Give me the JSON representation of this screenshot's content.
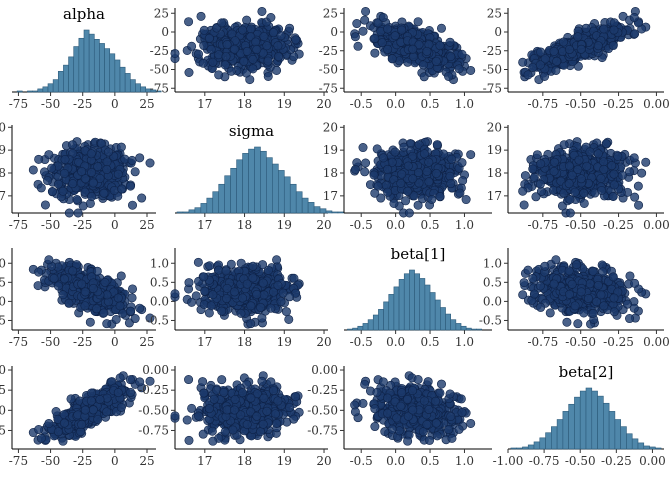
{
  "chart_data": {
    "type": "pairs",
    "title": "",
    "parameters": [
      {
        "name": "alpha",
        "ticks": [
          -75,
          -50,
          -25,
          0,
          25
        ],
        "tick_labels": [
          "-75",
          "-50",
          "-25",
          "0",
          "25"
        ],
        "range": [
          -80,
          32
        ]
      },
      {
        "name": "sigma",
        "ticks": [
          17,
          18,
          19,
          20
        ],
        "tick_labels": [
          "17",
          "18",
          "19",
          "20"
        ],
        "range": [
          16.25,
          20.1
        ]
      },
      {
        "name": "beta[1]",
        "ticks": [
          -0.5,
          0,
          0.5,
          1.0
        ],
        "tick_labels": [
          "-0.5",
          "0.0",
          "0.5",
          "1.0"
        ],
        "range": [
          -0.75,
          1.4
        ]
      },
      {
        "name": "beta[2]",
        "ticks": [
          -0.75,
          -0.5,
          -0.25,
          0
        ],
        "tick_labels": [
          "-0.75",
          "-0.50",
          "-0.25",
          "0.00"
        ],
        "range": [
          -0.98,
          0.05
        ]
      }
    ],
    "diagonal_tick_overrides": {
      "beta[2]": {
        "ticks": [
          -1,
          -0.75,
          -0.5,
          -0.25,
          0
        ],
        "tick_labels": [
          "-1.00",
          "-0.75",
          "-0.50",
          "-0.25",
          "0.00"
        ],
        "range": [
          -1.0,
          0.08
        ]
      }
    },
    "histograms": [
      {
        "parameter": "alpha",
        "bin_start": -76,
        "bin_width": 4,
        "counts": [
          1,
          0,
          1,
          1,
          3,
          5,
          8,
          12,
          20,
          26,
          34,
          44,
          52,
          60,
          56,
          51,
          47,
          42,
          37,
          31,
          24,
          18,
          12,
          8,
          5,
          3,
          2,
          1
        ]
      },
      {
        "parameter": "sigma",
        "bin_start": 16.3,
        "bin_width": 0.15,
        "counts": [
          1,
          1,
          3,
          5,
          9,
          14,
          20,
          27,
          35,
          42,
          50,
          56,
          60,
          62,
          58,
          52,
          46,
          40,
          34,
          27,
          20,
          14,
          10,
          6,
          4,
          2,
          1,
          1
        ]
      },
      {
        "parameter": "beta[1]",
        "bin_start": -0.7,
        "bin_width": 0.075,
        "counts": [
          1,
          2,
          4,
          7,
          11,
          16,
          22,
          30,
          38,
          46,
          54,
          60,
          64,
          60,
          55,
          48,
          40,
          32,
          24,
          17,
          11,
          7,
          4,
          2,
          1,
          1
        ]
      },
      {
        "parameter": "beta[2]",
        "bin_start": -0.98,
        "bin_width": 0.04,
        "counts": [
          1,
          1,
          2,
          4,
          7,
          11,
          16,
          22,
          29,
          37,
          44,
          51,
          57,
          60,
          57,
          52,
          45,
          37,
          29,
          22,
          15,
          10,
          6,
          3,
          2,
          1
        ]
      }
    ],
    "posterior_summary": {
      "alpha": {
        "mean": -20,
        "sd": 15
      },
      "sigma": {
        "mean": 18.0,
        "sd": 0.55
      },
      "beta[1]": {
        "mean": 0.3,
        "sd": 0.3
      },
      "beta[2]": {
        "mean": -0.5,
        "sd": 0.15
      }
    },
    "correlations": {
      "alpha|beta[1]": -0.6,
      "alpha|beta[2]": 0.8,
      "alpha|sigma": 0.0,
      "sigma|beta[1]": 0.0,
      "sigma|beta[2]": 0.0,
      "beta[1]|beta[2]": -0.2
    },
    "n_draws": 500
  }
}
